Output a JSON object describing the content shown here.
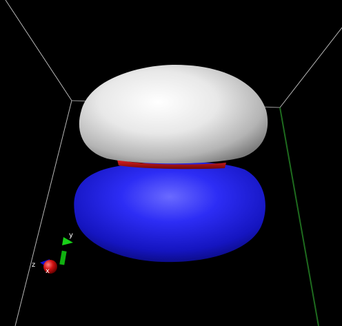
{
  "scene": {
    "background_color": "#000000",
    "box_edge_color": "#b8b8b8",
    "green_edge_color": "#1e6b1e",
    "lobes": [
      {
        "name": "upper-lobe",
        "color": "#e6e6e6"
      },
      {
        "name": "lower-lobe",
        "color": "#1a1ae6"
      }
    ],
    "nodal_ring_color": "#c01818"
  },
  "axes_gizmo": {
    "labels": {
      "x": "x",
      "y": "y",
      "z": "z"
    },
    "colors": {
      "x": "#d01010",
      "y": "#10b010",
      "z": "#1010d0"
    }
  }
}
